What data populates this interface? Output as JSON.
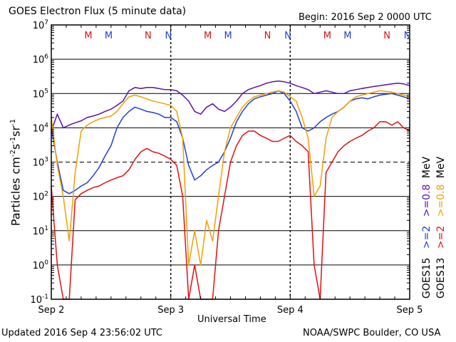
{
  "header": {
    "title": "GOES Electron Flux (5 minute data)",
    "begin": "Begin: 2016 Sep 2 0000 UTC"
  },
  "footer": {
    "updated": "Updated 2016 Sep  4 23:56:02 UTC",
    "source": "NOAA/SWPC Boulder, CO USA"
  },
  "legend": {
    "goes15_label": "GOES15",
    "goes13_label": "GOES13",
    "goes15_ge2": ">=2",
    "goes15_ge08": ">=0.8",
    "goes15_unit": "MeV",
    "goes13_ge2": ">=2",
    "goes13_ge08": ">=0.8",
    "goes13_unit": "MeV"
  },
  "colors": {
    "goes15_ge2": "#1f3fd6",
    "goes15_ge08": "#5b0fa8",
    "goes13_ge2": "#e01010",
    "goes13_ge08": "#f0a000",
    "marker_M": "#e01010",
    "marker_N": "#1f3fd6",
    "grid": "#000000"
  },
  "chart_data": {
    "type": "line",
    "title": "GOES Electron Flux (5 minute data)",
    "xlabel": "Universal Time",
    "ylabel": "Particles cm-2 s-1 sr-1",
    "yscale": "log",
    "ylim": [
      0.1,
      10000000
    ],
    "xlim": [
      0,
      3
    ],
    "x_unit": "days since 2016 Sep 2 0000 UTC",
    "x_ticks": [
      {
        "x": 0,
        "label": "Sep 2"
      },
      {
        "x": 1,
        "label": "Sep 3"
      },
      {
        "x": 2,
        "label": "Sep 4"
      },
      {
        "x": 3,
        "label": "Sep 5"
      }
    ],
    "y_ticks": [
      {
        "exp": "-1"
      },
      {
        "exp": "0"
      },
      {
        "exp": "1"
      },
      {
        "exp": "2"
      },
      {
        "exp": "3"
      },
      {
        "exp": "4"
      },
      {
        "exp": "5"
      },
      {
        "exp": "6"
      },
      {
        "exp": "7"
      }
    ],
    "alert_threshold": 1000,
    "grid": true,
    "markers": [
      {
        "label": "M",
        "x": 0.31,
        "series": "goes13"
      },
      {
        "label": "M",
        "x": 0.48,
        "series": "goes15"
      },
      {
        "label": "N",
        "x": 0.81,
        "series": "goes13"
      },
      {
        "label": "N",
        "x": 0.98,
        "series": "goes15"
      },
      {
        "label": "M",
        "x": 1.31,
        "series": "goes13"
      },
      {
        "label": "M",
        "x": 1.48,
        "series": "goes15"
      },
      {
        "label": "N",
        "x": 1.81,
        "series": "goes13"
      },
      {
        "label": "N",
        "x": 1.98,
        "series": "goes15"
      },
      {
        "label": "M",
        "x": 2.31,
        "series": "goes13"
      },
      {
        "label": "M",
        "x": 2.48,
        "series": "goes15"
      },
      {
        "label": "N",
        "x": 2.81,
        "series": "goes13"
      },
      {
        "label": "N",
        "x": 2.98,
        "series": "goes15"
      }
    ],
    "series": [
      {
        "name": "GOES15 >=0.8 MeV",
        "color": "#5b0fa8",
        "x": [
          0.0,
          0.05,
          0.1,
          0.15,
          0.2,
          0.25,
          0.3,
          0.35,
          0.4,
          0.45,
          0.5,
          0.55,
          0.6,
          0.65,
          0.7,
          0.75,
          0.8,
          0.85,
          0.9,
          0.95,
          1.0,
          1.05,
          1.1,
          1.15,
          1.2,
          1.25,
          1.3,
          1.35,
          1.4,
          1.45,
          1.5,
          1.55,
          1.6,
          1.65,
          1.7,
          1.75,
          1.8,
          1.85,
          1.9,
          1.95,
          2.0,
          2.05,
          2.1,
          2.15,
          2.2,
          2.25,
          2.3,
          2.35,
          2.4,
          2.45,
          2.5,
          2.55,
          2.6,
          2.65,
          2.7,
          2.75,
          2.8,
          2.85,
          2.9,
          2.95,
          3.0
        ],
        "y": [
          8000,
          25000,
          10000,
          12000,
          14000,
          16000,
          20000,
          22000,
          25000,
          30000,
          35000,
          45000,
          60000,
          120000,
          150000,
          140000,
          150000,
          150000,
          140000,
          130000,
          130000,
          120000,
          90000,
          60000,
          30000,
          25000,
          40000,
          50000,
          35000,
          30000,
          40000,
          60000,
          100000,
          130000,
          150000,
          170000,
          200000,
          220000,
          230000,
          220000,
          200000,
          170000,
          150000,
          130000,
          100000,
          110000,
          120000,
          110000,
          100000,
          100000,
          120000,
          130000,
          140000,
          150000,
          160000,
          170000,
          180000,
          190000,
          200000,
          190000,
          170000
        ]
      },
      {
        "name": "GOES15 >=2 MeV",
        "color": "#1f3fd6",
        "x": [
          0.0,
          0.05,
          0.1,
          0.15,
          0.2,
          0.25,
          0.3,
          0.35,
          0.4,
          0.45,
          0.5,
          0.55,
          0.6,
          0.65,
          0.7,
          0.75,
          0.8,
          0.85,
          0.9,
          0.95,
          1.0,
          1.05,
          1.1,
          1.15,
          1.2,
          1.25,
          1.3,
          1.35,
          1.4,
          1.45,
          1.5,
          1.55,
          1.6,
          1.65,
          1.7,
          1.75,
          1.8,
          1.85,
          1.9,
          1.95,
          2.0,
          2.05,
          2.1,
          2.15,
          2.2,
          2.25,
          2.3,
          2.35,
          2.4,
          2.45,
          2.5,
          2.55,
          2.6,
          2.65,
          2.7,
          2.75,
          2.8,
          2.85,
          2.9,
          2.95,
          3.0
        ],
        "y": [
          10000,
          1000,
          150,
          120,
          150,
          200,
          250,
          400,
          700,
          1500,
          3000,
          10000,
          20000,
          30000,
          40000,
          35000,
          30000,
          28000,
          25000,
          20000,
          20000,
          15000,
          5000,
          800,
          300,
          400,
          600,
          800,
          1000,
          2000,
          5000,
          15000,
          30000,
          50000,
          70000,
          80000,
          90000,
          100000,
          120000,
          100000,
          60000,
          30000,
          10000,
          8000,
          10000,
          15000,
          20000,
          25000,
          30000,
          40000,
          60000,
          70000,
          75000,
          70000,
          80000,
          90000,
          95000,
          100000,
          90000,
          80000,
          70000
        ]
      },
      {
        "name": "GOES13 >=0.8 MeV",
        "color": "#f0a000",
        "x": [
          0.0,
          0.05,
          0.1,
          0.15,
          0.2,
          0.25,
          0.3,
          0.35,
          0.4,
          0.45,
          0.5,
          0.55,
          0.6,
          0.65,
          0.7,
          0.75,
          0.8,
          0.85,
          0.9,
          0.95,
          1.0,
          1.05,
          1.1,
          1.15,
          1.2,
          1.25,
          1.3,
          1.35,
          1.4,
          1.45,
          1.5,
          1.55,
          1.6,
          1.65,
          1.7,
          1.75,
          1.8,
          1.85,
          1.9,
          1.95,
          2.0,
          2.05,
          2.1,
          2.15,
          2.2,
          2.25,
          2.3,
          2.35,
          2.4,
          2.45,
          2.5,
          2.55,
          2.6,
          2.65,
          2.7,
          2.75,
          2.8,
          2.85,
          2.9,
          2.95,
          3.0
        ],
        "y": [
          20000,
          800,
          100,
          5,
          500,
          8000,
          12000,
          15000,
          18000,
          20000,
          22000,
          30000,
          50000,
          80000,
          90000,
          80000,
          70000,
          60000,
          55000,
          50000,
          45000,
          30000,
          5000,
          1,
          10,
          1,
          20,
          5,
          100,
          2000,
          10000,
          20000,
          40000,
          60000,
          80000,
          90000,
          100000,
          110000,
          120000,
          110000,
          80000,
          60000,
          20000,
          5000,
          100,
          200,
          5000,
          20000,
          30000,
          40000,
          60000,
          80000,
          90000,
          100000,
          110000,
          120000,
          115000,
          110000,
          100000,
          90000,
          80000
        ]
      },
      {
        "name": "GOES13 >=2 MeV",
        "color": "#e01010",
        "x": [
          0.0,
          0.05,
          0.1,
          0.15,
          0.2,
          0.25,
          0.3,
          0.35,
          0.4,
          0.45,
          0.5,
          0.55,
          0.6,
          0.65,
          0.7,
          0.75,
          0.8,
          0.85,
          0.9,
          0.95,
          1.0,
          1.05,
          1.1,
          1.15,
          1.2,
          1.25,
          1.3,
          1.35,
          1.4,
          1.45,
          1.5,
          1.55,
          1.6,
          1.65,
          1.7,
          1.75,
          1.8,
          1.85,
          1.9,
          1.95,
          2.0,
          2.05,
          2.1,
          2.15,
          2.2,
          2.25,
          2.3,
          2.35,
          2.4,
          2.45,
          2.5,
          2.55,
          2.6,
          2.65,
          2.7,
          2.75,
          2.8,
          2.85,
          2.9,
          2.95,
          3.0
        ],
        "y": [
          200,
          1,
          0.1,
          0.1,
          80,
          120,
          150,
          180,
          200,
          250,
          300,
          350,
          400,
          600,
          1200,
          2000,
          2500,
          2000,
          1800,
          1500,
          1200,
          800,
          100,
          0.1,
          1,
          0.1,
          0.1,
          0.1,
          10,
          100,
          1000,
          3000,
          6000,
          8000,
          8000,
          6000,
          5000,
          4000,
          4000,
          5000,
          6000,
          4000,
          3000,
          2000,
          1,
          0.1,
          500,
          1000,
          2000,
          3000,
          4000,
          5000,
          6000,
          8000,
          10000,
          15000,
          15000,
          12000,
          15000,
          10000,
          8000
        ]
      }
    ]
  }
}
